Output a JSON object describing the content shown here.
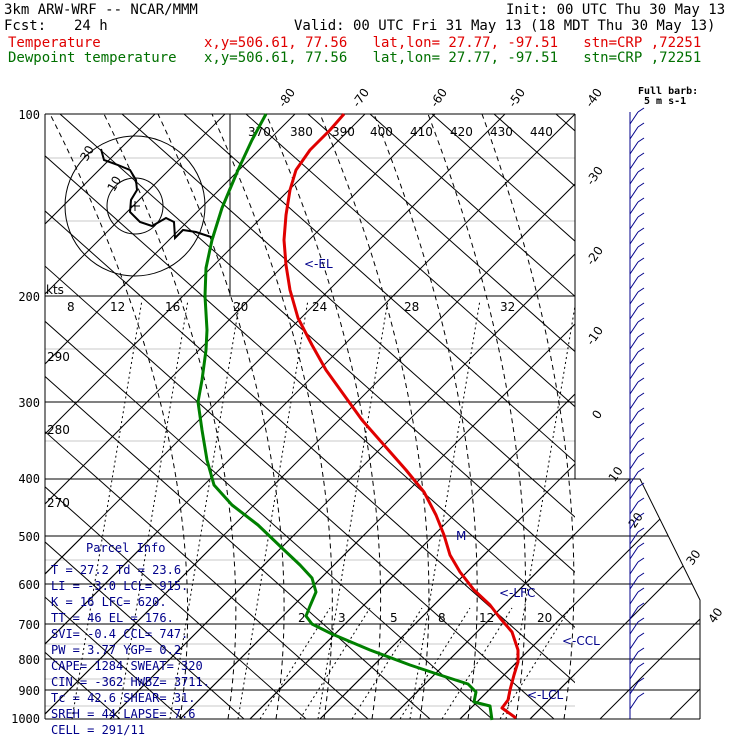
{
  "header": {
    "model": "3km ARW-WRF -- NCAR/MMM",
    "init": "Init: 00 UTC Thu 30 May 13",
    "fcst_label": "Fcst:",
    "fcst_value": "24 h",
    "valid": "Valid: 00 UTC Fri 31 May 13 (18 MDT Thu 30 May 13)",
    "temp_label": "Temperature",
    "temp_loc": "x,y=506.61, 77.56   lat,lon= 27.77, -97.51   stn=CRP ,72251",
    "dew_label": "Dewpoint temperature",
    "dew_loc": "x,y=506.61, 77.56   lat,lon= 27.77, -97.51   stn=CRP ,72251"
  },
  "colors": {
    "temperature": "#e00000",
    "dewpoint": "#008000",
    "annotation": "#00008b"
  },
  "pressure_levels": [
    "100",
    "200",
    "300",
    "400",
    "500",
    "600",
    "700",
    "800",
    "900",
    "1000"
  ],
  "top_isotherm_labels": [
    "-80",
    "-70",
    "-60",
    "-50",
    "-40"
  ],
  "right_isotherm_labels": [
    "-30",
    "-20",
    "-10",
    "0",
    "10",
    "20",
    "30",
    "40"
  ],
  "theta_labels": [
    "370",
    "380",
    "390",
    "400",
    "410",
    "420",
    "430",
    "440"
  ],
  "mixing_ratio_labels": [
    "8",
    "12",
    "16",
    "20",
    "24",
    "28",
    "32"
  ],
  "mixing_ratio_low_labels": [
    "2",
    "3",
    "5",
    "8",
    "12",
    "20"
  ],
  "left_dry_adiabat_labels": [
    "290",
    "280",
    "270"
  ],
  "hodograph": {
    "units_label": "kts",
    "ring_labels": [
      "30",
      "10"
    ]
  },
  "barb_key": {
    "title": "Full barb:",
    "value": "5 m s-1"
  },
  "markers": {
    "el": "<-EL",
    "lfc": "<-LFC",
    "ccl": "<-CCL",
    "lcl": "<-LCL",
    "m": "M"
  },
  "parcel_info": {
    "title": "Parcel Info",
    "rows": [
      "T  =   27.2 Td =  23.6",
      "LI =   -3.0 LCL=  915.",
      "K  =     16 LFC=  620.",
      "TT =     46 EL =  176.",
      "SVI=   -0.4 CCL=  747.",
      "PW =   3.77 YGP=   0.2",
      "CAPE=  1284 SWEAT=  320",
      "CIN =  -362 HWBZ= 3711.",
      "Tc =   42.6 SHEAR=  31.",
      "SREH =   44 LAPSE=  7.6",
      "CELL = 291/11"
    ]
  }
}
